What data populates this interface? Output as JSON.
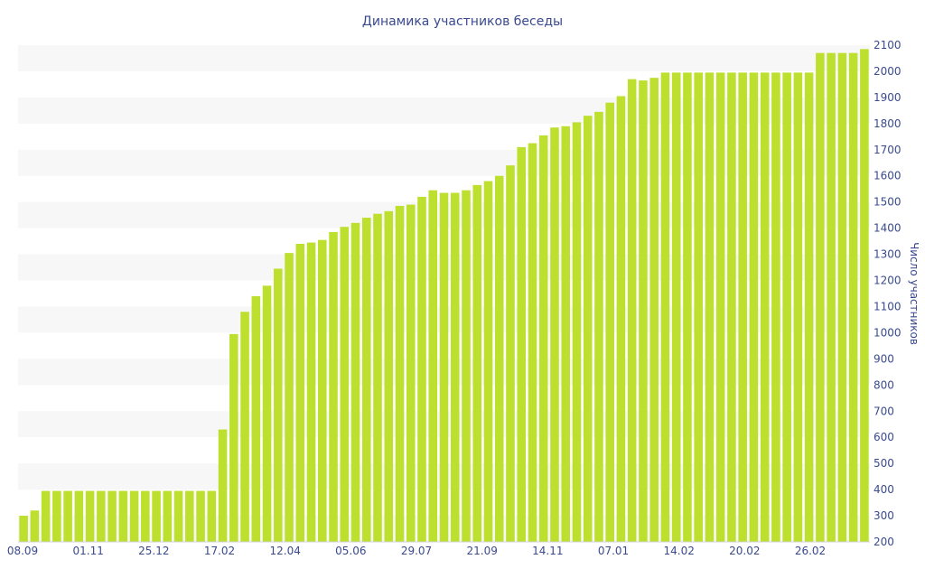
{
  "chart_data": {
    "type": "bar",
    "title": "Динамика участников беседы",
    "ylabel": "Число участников",
    "xlabel": "",
    "ylim": [
      200,
      2100
    ],
    "y_ticks": [
      200,
      300,
      400,
      500,
      600,
      700,
      800,
      900,
      1000,
      1100,
      1200,
      1300,
      1400,
      1500,
      1600,
      1700,
      1800,
      1900,
      2000,
      2100
    ],
    "x_tick_labels": [
      "08.09",
      "01.11",
      "25.12",
      "17.02",
      "12.04",
      "05.06",
      "29.07",
      "21.09",
      "14.11",
      "07.01",
      "14.02",
      "20.02",
      "26.02"
    ],
    "grid": "alternating horizontal bands",
    "legend": "none",
    "bar_color": "#bddf2e",
    "values": [
      300,
      320,
      395,
      395,
      395,
      395,
      395,
      395,
      395,
      395,
      395,
      395,
      395,
      395,
      395,
      395,
      395,
      395,
      630,
      995,
      1080,
      1140,
      1180,
      1245,
      1305,
      1340,
      1345,
      1355,
      1385,
      1405,
      1420,
      1440,
      1455,
      1465,
      1485,
      1490,
      1520,
      1545,
      1535,
      1535,
      1545,
      1565,
      1580,
      1600,
      1640,
      1710,
      1725,
      1755,
      1785,
      1790,
      1805,
      1830,
      1845,
      1880,
      1905,
      1970,
      1965,
      1975,
      1995,
      1995,
      1995,
      1995,
      1995,
      1995,
      1995,
      1995,
      1995,
      1995,
      1995,
      1995,
      1995,
      1995,
      2070,
      2070,
      2070,
      2070,
      2085
    ]
  }
}
